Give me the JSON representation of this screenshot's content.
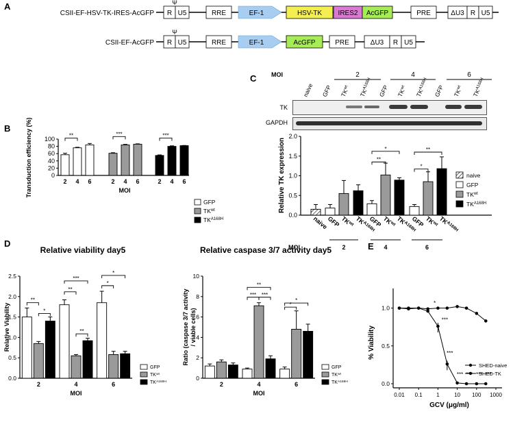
{
  "panel_letters": [
    "A",
    "B",
    "C",
    "D",
    "E"
  ],
  "colors": {
    "gray": "#9a9a9a",
    "black": "#000000",
    "yfp": "#f3ee52",
    "pink": "#d97ad2",
    "green": "#a6ec55",
    "blue": "#a7cdf0"
  },
  "panel_a": {
    "construct1": {
      "name": "CSII-EF-HSV-TK-IRES-AcGFP",
      "boxes": [
        "R",
        "U5",
        "RRE",
        "EF-1",
        "HSV-TK",
        "IRES2",
        "AcGFP",
        "PRE",
        "ΔU3",
        "R",
        "U5"
      ],
      "psi": "Ψ"
    },
    "construct2": {
      "name": "CSII-EF-AcGFP",
      "boxes": [
        "R",
        "U5",
        "RRE",
        "EF-1",
        "AcGFP",
        "PRE",
        "ΔU3",
        "R",
        "U5"
      ],
      "psi": "Ψ"
    }
  },
  "chart_data": [
    {
      "panel": "B",
      "type": "bar",
      "title": "",
      "xlabel": "MOI",
      "ylabel": "Transduction efficiency (%)",
      "ylim": [
        0,
        100
      ],
      "yticks": [
        "0",
        "20",
        "40",
        "60",
        "80",
        "100"
      ],
      "categories": [
        "2",
        "4",
        "6",
        "2",
        "4",
        "6",
        "2",
        "4",
        "6"
      ],
      "groups": [
        "GFP",
        "TKwt",
        "TKA168H"
      ],
      "values": [
        57,
        76,
        84,
        61,
        84,
        86,
        55,
        80,
        82
      ],
      "errors": [
        4,
        1.5,
        4,
        1.5,
        1.5,
        1,
        1.5,
        1.5,
        0.5
      ],
      "significance": [
        "**",
        "***",
        "***"
      ],
      "legend": [
        {
          "label": "GFP",
          "sup": ""
        },
        {
          "label": "TK",
          "sup": "wt"
        },
        {
          "label": "TK",
          "sup": "A168H"
        }
      ]
    },
    {
      "panel": "C",
      "type": "bar",
      "ylabel": "Relative TK expression",
      "ylim": [
        0,
        2.0
      ],
      "yticks": [
        "0.0",
        "0.5",
        "1.0",
        "1.5",
        "2.0"
      ],
      "moi_label": "MOI",
      "moi_groups": [
        "2",
        "4",
        "6"
      ],
      "blot": {
        "lanes": [
          "naive",
          "GFP",
          "TKwt",
          "TKA168H",
          "GFP",
          "TKwt",
          "TKA168H",
          "GFP",
          "TKwt",
          "TKA168H"
        ],
        "rows": [
          "TK",
          "GAPDH"
        ]
      },
      "x_labels": [
        {
          "label": "naive",
          "sup": ""
        },
        {
          "label": "GFP",
          "sup": ""
        },
        {
          "label": "TK",
          "sup": "wt"
        },
        {
          "label": "TK",
          "sup": "A168H"
        },
        {
          "label": "GFP",
          "sup": ""
        },
        {
          "label": "TK",
          "sup": "wt"
        },
        {
          "label": "TK",
          "sup": "A168H"
        },
        {
          "label": "GFP",
          "sup": ""
        },
        {
          "label": "TK",
          "sup": "wt"
        },
        {
          "label": "TK",
          "sup": "A168H"
        }
      ],
      "values": [
        0.15,
        0.18,
        0.55,
        0.62,
        0.29,
        1.02,
        0.89,
        0.22,
        0.85,
        1.18
      ],
      "errors": [
        0.12,
        0.09,
        0.33,
        0.15,
        0.08,
        0.3,
        0.06,
        0.05,
        0.25,
        0.3
      ],
      "significance": [
        "**",
        "*",
        "*",
        "**"
      ],
      "legend": [
        {
          "label": "naive",
          "sup": ""
        },
        {
          "label": "GFP",
          "sup": ""
        },
        {
          "label": "TK",
          "sup": "wt"
        },
        {
          "label": "TK",
          "sup": "A168H"
        }
      ]
    },
    {
      "panel": "D-left",
      "type": "bar",
      "title": "Relative viability day5",
      "xlabel": "MOI",
      "ylabel": "Relative Viability",
      "ylim": [
        0,
        2.5
      ],
      "yticks": [
        "0.0",
        "0.5",
        "1.0",
        "1.5",
        "2.0",
        "2.5"
      ],
      "categories": [
        "2",
        "4",
        "6"
      ],
      "series": [
        {
          "name": "GFP",
          "values": [
            1.5,
            1.8,
            1.85
          ],
          "errors": [
            0.22,
            0.12,
            0.28
          ]
        },
        {
          "name": "TKwt",
          "values": [
            0.85,
            0.55,
            0.58
          ],
          "errors": [
            0.05,
            0.03,
            0.08
          ]
        },
        {
          "name": "TKA168H",
          "values": [
            1.4,
            0.92,
            0.6
          ],
          "errors": [
            0.1,
            0.06,
            0.06
          ]
        }
      ],
      "significance": [
        "**",
        "*",
        "***",
        "**",
        "**",
        "*",
        "*"
      ],
      "legend": [
        {
          "label": "GFP",
          "sup": ""
        },
        {
          "label": "TK",
          "sup": "wt"
        },
        {
          "label": "TK",
          "sup": "A168H"
        }
      ]
    },
    {
      "panel": "D-right",
      "type": "bar",
      "title": "Relative caspase 3/7 activity day5",
      "xlabel": "MOI",
      "ylabel": "Ratio (caspase 3/7 activity / viable cells)",
      "ylabel_lines": [
        "Ratio (caspase 3/7 activity",
        "/ viable cells)"
      ],
      "ylim": [
        0,
        10
      ],
      "yticks": [
        "0",
        "2",
        "4",
        "6",
        "8",
        "10"
      ],
      "categories": [
        "2",
        "4",
        "6"
      ],
      "series": [
        {
          "name": "GFP",
          "values": [
            1.2,
            0.9,
            0.9
          ],
          "errors": [
            0.2,
            0.1,
            0.2
          ]
        },
        {
          "name": "TKwt",
          "values": [
            1.6,
            7.1,
            4.8
          ],
          "errors": [
            0.2,
            0.3,
            1.8
          ]
        },
        {
          "name": "TKA168H",
          "values": [
            1.3,
            1.9,
            4.6
          ],
          "errors": [
            0.2,
            0.3,
            0.7
          ]
        }
      ],
      "significance": [
        "**",
        "***",
        "***",
        "*",
        "*"
      ],
      "legend": [
        {
          "label": "GFP",
          "sup": ""
        },
        {
          "label": "TK",
          "sup": "wt"
        },
        {
          "label": "TK",
          "sup": "A168H"
        }
      ]
    },
    {
      "panel": "E",
      "type": "line",
      "xlabel": "GCV (μg/ml)",
      "ylabel": "% Viability",
      "xscale": "log",
      "xlim": [
        0.01,
        1000
      ],
      "ylim": [
        0,
        1.0
      ],
      "xticks": [
        "0.01",
        "0.1",
        "1",
        "10",
        "100",
        "1000"
      ],
      "yticks": [
        "0.0",
        "0.5",
        "1.0"
      ],
      "series": [
        {
          "name": "SHED-naive",
          "x": [
            0.01,
            0.03,
            0.1,
            0.3,
            1,
            3,
            10,
            30,
            100,
            300
          ],
          "y": [
            1.0,
            0.99,
            1.0,
            0.99,
            1.0,
            1.0,
            1.02,
            1.0,
            0.93,
            0.83
          ]
        },
        {
          "name": "SHED-TK",
          "x": [
            0.01,
            0.03,
            0.1,
            0.3,
            1,
            3,
            10,
            30,
            100,
            300
          ],
          "y": [
            1.0,
            1.0,
            1.0,
            0.96,
            0.76,
            0.26,
            0.01,
            0.0,
            0.0,
            0.0
          ]
        }
      ],
      "significance": [
        "*",
        "***",
        "***",
        "***",
        "***",
        "***",
        "***"
      ]
    }
  ]
}
